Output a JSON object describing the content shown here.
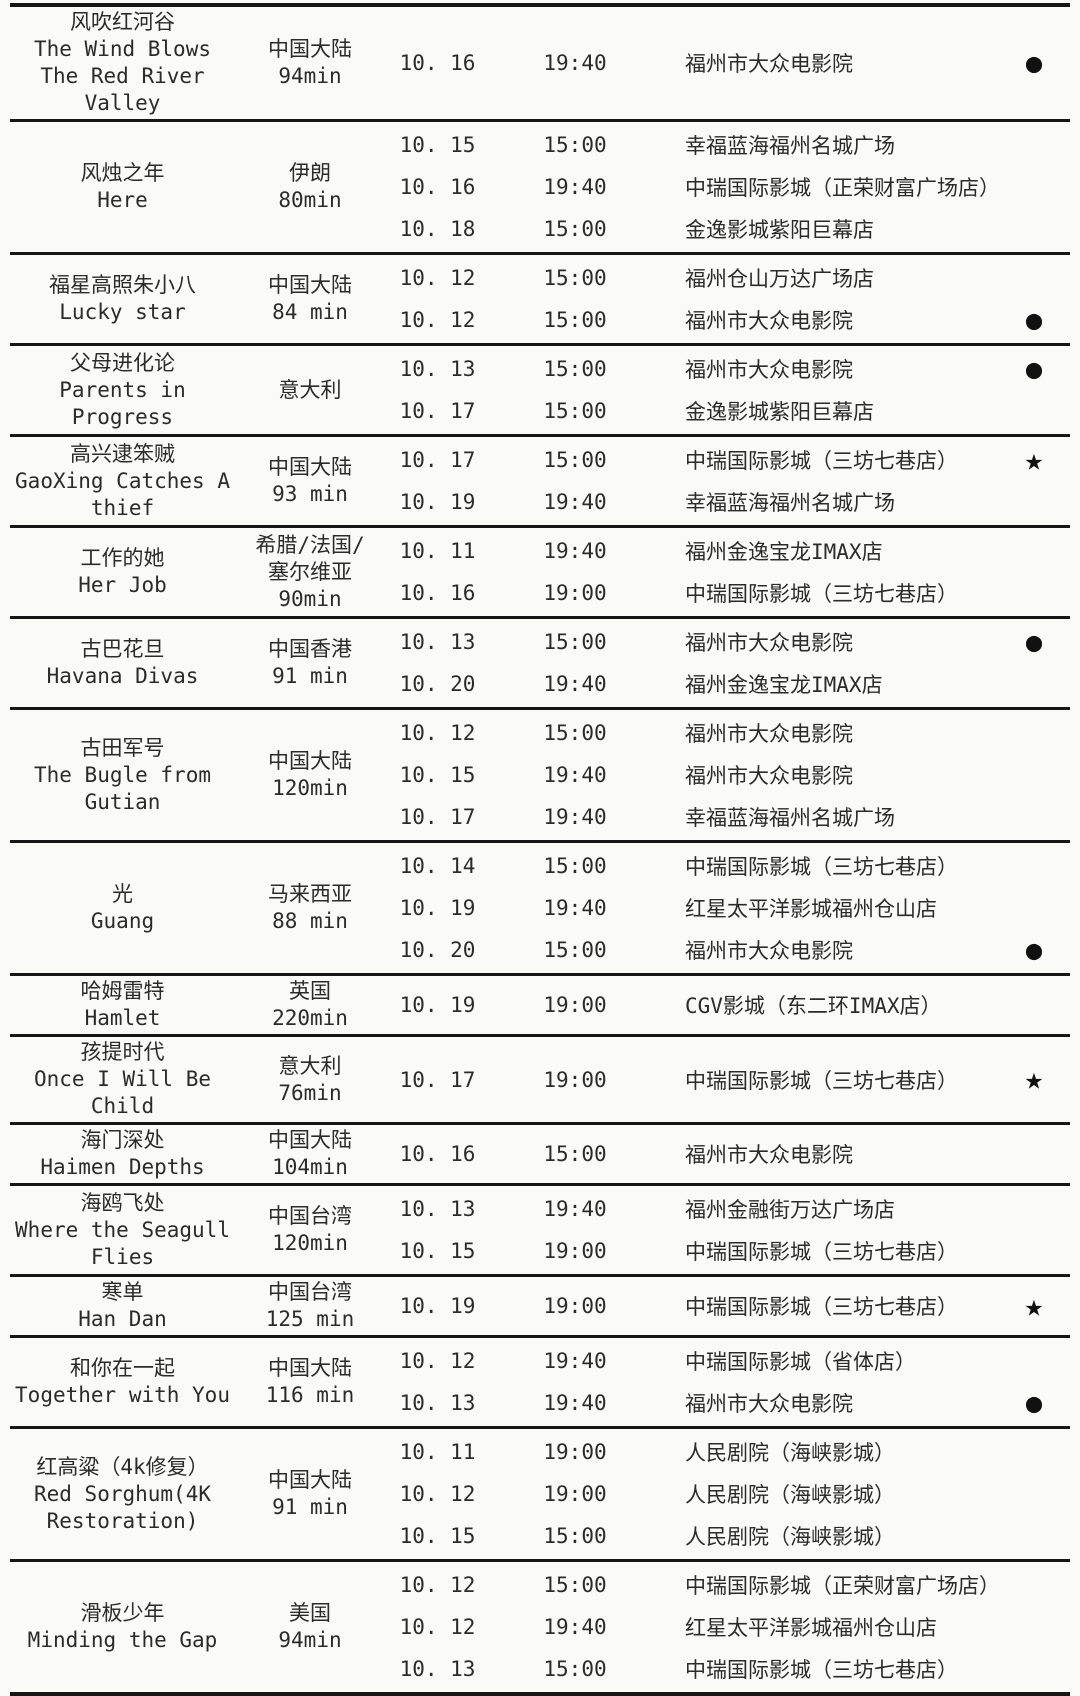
{
  "page": {
    "background_color": "#fafaf9",
    "line_color": "#161616",
    "text_color": "#2b2b2b"
  },
  "legend": {
    "dot": "●",
    "star": "★"
  },
  "films": [
    {
      "title_zh": "风吹红河谷",
      "title_en": "The Wind Blows The Red River Valley",
      "origin": "中国大陆",
      "duration": "94min",
      "showings": [
        {
          "date": "10. 16",
          "time": "19:40",
          "venue": "福州市大众电影院",
          "marker": "dot"
        }
      ]
    },
    {
      "title_zh": "风烛之年",
      "title_en": "Here",
      "origin": "伊朗",
      "duration": "80min",
      "showings": [
        {
          "date": "10. 15",
          "time": "15:00",
          "venue": "幸福蓝海福州名城广场",
          "marker": ""
        },
        {
          "date": "10. 16",
          "time": "19:40",
          "venue": "中瑞国际影城（正荣财富广场店）",
          "marker": ""
        },
        {
          "date": "10. 18",
          "time": "15:00",
          "venue": "金逸影城紫阳巨幕店",
          "marker": ""
        }
      ]
    },
    {
      "title_zh": "福星高照朱小八",
      "title_en": "Lucky star",
      "origin": "中国大陆",
      "duration": "84 min",
      "showings": [
        {
          "date": "10. 12",
          "time": "15:00",
          "venue": "福州仓山万达广场店",
          "marker": ""
        },
        {
          "date": "10. 12",
          "time": "15:00",
          "venue": "福州市大众电影院",
          "marker": "dot"
        }
      ]
    },
    {
      "title_zh": "父母进化论",
      "title_en": "Parents in Progress",
      "origin": "意大利",
      "duration": "",
      "showings": [
        {
          "date": "10. 13",
          "time": "15:00",
          "venue": "福州市大众电影院",
          "marker": "dot"
        },
        {
          "date": "10. 17",
          "time": "15:00",
          "venue": "金逸影城紫阳巨幕店",
          "marker": ""
        }
      ]
    },
    {
      "title_zh": "高兴逮笨贼",
      "title_en": "GaoXing Catches A thief",
      "origin": "中国大陆",
      "duration": "93 min",
      "showings": [
        {
          "date": "10. 17",
          "time": "15:00",
          "venue": "中瑞国际影城（三坊七巷店）",
          "marker": "star"
        },
        {
          "date": "10. 19",
          "time": "19:40",
          "venue": "幸福蓝海福州名城广场",
          "marker": ""
        }
      ]
    },
    {
      "title_zh": "工作的她",
      "title_en": "Her Job",
      "origin": [
        "希腊/法国/",
        "塞尔维亚"
      ],
      "duration": "90min",
      "showings": [
        {
          "date": "10. 11",
          "time": "19:40",
          "venue": "福州金逸宝龙IMAX店",
          "marker": ""
        },
        {
          "date": "10. 16",
          "time": "19:00",
          "venue": "中瑞国际影城（三坊七巷店）",
          "marker": ""
        }
      ]
    },
    {
      "title_zh": "古巴花旦",
      "title_en": "Havana Divas",
      "origin": "中国香港",
      "duration": "91 min",
      "showings": [
        {
          "date": "10. 13",
          "time": "15:00",
          "venue": "福州市大众电影院",
          "marker": "dot"
        },
        {
          "date": "10. 20",
          "time": "19:40",
          "venue": "福州金逸宝龙IMAX店",
          "marker": ""
        }
      ]
    },
    {
      "title_zh": "古田军号",
      "title_en": "The Bugle from Gutian",
      "origin": "中国大陆",
      "duration": "120min",
      "showings": [
        {
          "date": "10. 12",
          "time": "15:00",
          "venue": "福州市大众电影院",
          "marker": ""
        },
        {
          "date": "10. 15",
          "time": "19:40",
          "venue": "福州市大众电影院",
          "marker": ""
        },
        {
          "date": "10. 17",
          "time": "19:40",
          "venue": "幸福蓝海福州名城广场",
          "marker": ""
        }
      ]
    },
    {
      "title_zh": "光",
      "title_en": "Guang",
      "origin": "马来西亚",
      "duration": "88 min",
      "showings": [
        {
          "date": "10. 14",
          "time": "15:00",
          "venue": "中瑞国际影城（三坊七巷店）",
          "marker": ""
        },
        {
          "date": "10. 19",
          "time": "19:40",
          "venue": "红星太平洋影城福州仓山店",
          "marker": ""
        },
        {
          "date": "10. 20",
          "time": "15:00",
          "venue": "福州市大众电影院",
          "marker": "dot"
        }
      ]
    },
    {
      "title_zh": "哈姆雷特",
      "title_en": "Hamlet",
      "origin": "英国",
      "duration": "220min",
      "showings": [
        {
          "date": "10. 19",
          "time": "19:00",
          "venue": "CGV影城（东二环IMAX店）",
          "marker": ""
        }
      ]
    },
    {
      "title_zh": "孩提时代",
      "title_en": "Once I Will Be Child",
      "origin": "意大利",
      "duration": "76min",
      "showings": [
        {
          "date": "10. 17",
          "time": "19:00",
          "venue": "中瑞国际影城（三坊七巷店）",
          "marker": "star"
        }
      ]
    },
    {
      "title_zh": "海门深处",
      "title_en": "Haimen Depths",
      "origin": "中国大陆",
      "duration": "104min",
      "showings": [
        {
          "date": "10. 16",
          "time": "15:00",
          "venue": "福州市大众电影院",
          "marker": ""
        }
      ]
    },
    {
      "title_zh": "海鸥飞处",
      "title_en": "Where the Seagull Flies",
      "origin": "中国台湾",
      "duration": "120min",
      "showings": [
        {
          "date": "10. 13",
          "time": "19:40",
          "venue": "福州金融街万达广场店",
          "marker": ""
        },
        {
          "date": "10. 15",
          "time": "19:00",
          "venue": "中瑞国际影城（三坊七巷店）",
          "marker": ""
        }
      ]
    },
    {
      "title_zh": "寒单",
      "title_en": "Han Dan",
      "origin": "中国台湾",
      "duration": "125 min",
      "showings": [
        {
          "date": "10. 19",
          "time": "19:00",
          "venue": "中瑞国际影城（三坊七巷店）",
          "marker": "star"
        }
      ]
    },
    {
      "title_zh": "和你在一起",
      "title_en": "Together with You",
      "origin": "中国大陆",
      "duration": "116 min",
      "showings": [
        {
          "date": "10. 12",
          "time": "19:40",
          "venue": "中瑞国际影城（省体店）",
          "marker": ""
        },
        {
          "date": "10. 13",
          "time": "19:40",
          "venue": "福州市大众电影院",
          "marker": "dot"
        }
      ]
    },
    {
      "title_zh": "红高粱（4k修复）",
      "title_en": "Red Sorghum(4K Restoration)",
      "origin": "中国大陆",
      "duration": "91 min",
      "showings": [
        {
          "date": "10. 11",
          "time": "19:00",
          "venue": "人民剧院（海峡影城）",
          "marker": ""
        },
        {
          "date": "10. 12",
          "time": "19:00",
          "venue": "人民剧院（海峡影城）",
          "marker": ""
        },
        {
          "date": "10. 15",
          "time": "15:00",
          "venue": "人民剧院（海峡影城）",
          "marker": ""
        }
      ]
    },
    {
      "title_zh": "滑板少年",
      "title_en": "Minding the Gap",
      "origin": "美国",
      "duration": "94min",
      "showings": [
        {
          "date": "10. 12",
          "time": "15:00",
          "venue": "中瑞国际影城（正荣财富广场店）",
          "marker": ""
        },
        {
          "date": "10. 12",
          "time": "19:40",
          "venue": "红星太平洋影城福州仓山店",
          "marker": ""
        },
        {
          "date": "10. 13",
          "time": "15:00",
          "venue": "中瑞国际影城（三坊七巷店）",
          "marker": ""
        }
      ]
    }
  ]
}
